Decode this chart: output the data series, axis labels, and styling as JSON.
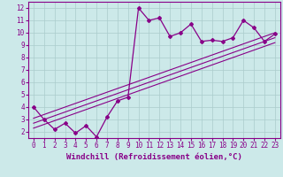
{
  "xlabel": "Windchill (Refroidissement éolien,°C)",
  "bg_color": "#cce9e9",
  "line_color": "#880088",
  "grid_color": "#aacccc",
  "x_data": [
    0,
    1,
    2,
    3,
    4,
    5,
    6,
    7,
    8,
    9,
    10,
    11,
    12,
    13,
    14,
    15,
    16,
    17,
    18,
    19,
    20,
    21,
    22,
    23
  ],
  "y_main": [
    4.0,
    3.0,
    2.2,
    2.7,
    1.9,
    2.5,
    1.6,
    3.2,
    4.5,
    4.8,
    12.0,
    11.0,
    11.2,
    9.7,
    10.0,
    10.7,
    9.3,
    9.4,
    9.3,
    9.6,
    11.0,
    10.4,
    9.3,
    9.9
  ],
  "y_reg1": [
    2.3,
    2.6,
    2.9,
    3.2,
    3.5,
    3.8,
    4.1,
    4.4,
    4.7,
    5.0,
    5.3,
    5.6,
    5.9,
    6.2,
    6.5,
    6.8,
    7.1,
    7.4,
    7.7,
    8.0,
    8.3,
    8.6,
    8.9,
    9.2
  ],
  "y_reg2": [
    2.7,
    3.0,
    3.3,
    3.6,
    3.9,
    4.2,
    4.5,
    4.8,
    5.1,
    5.4,
    5.7,
    6.0,
    6.3,
    6.6,
    6.9,
    7.2,
    7.5,
    7.8,
    8.1,
    8.4,
    8.7,
    9.0,
    9.3,
    9.6
  ],
  "y_reg3": [
    3.1,
    3.4,
    3.7,
    4.0,
    4.3,
    4.6,
    4.9,
    5.2,
    5.5,
    5.8,
    6.1,
    6.4,
    6.7,
    7.0,
    7.3,
    7.6,
    7.9,
    8.2,
    8.5,
    8.8,
    9.1,
    9.4,
    9.7,
    10.0
  ],
  "xlim": [
    -0.5,
    23.5
  ],
  "ylim": [
    1.5,
    12.5
  ],
  "xticks": [
    0,
    1,
    2,
    3,
    4,
    5,
    6,
    7,
    8,
    9,
    10,
    11,
    12,
    13,
    14,
    15,
    16,
    17,
    18,
    19,
    20,
    21,
    22,
    23
  ],
  "yticks": [
    2,
    3,
    4,
    5,
    6,
    7,
    8,
    9,
    10,
    11,
    12
  ],
  "tick_fontsize": 5.5,
  "xlabel_fontsize": 6.5
}
